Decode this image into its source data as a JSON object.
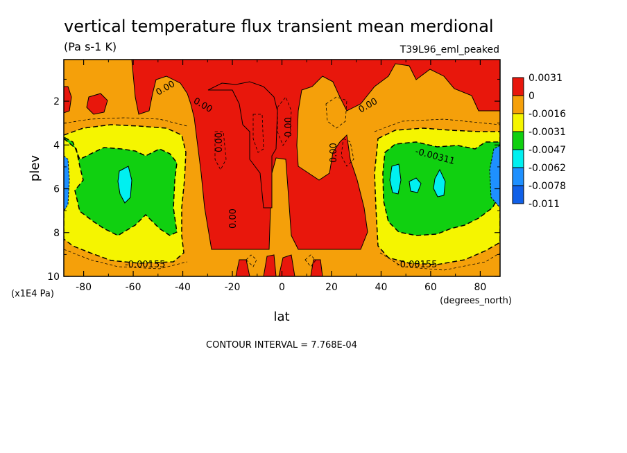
{
  "header": {
    "title": "vertical temperature flux transient mean merdional",
    "units": "(Pa s-1 K)",
    "run_label": "T39L96_eml_peaked"
  },
  "footer": {
    "contour_interval": "CONTOUR INTERVAL = 7.768E-04"
  },
  "chart_data": {
    "type": "heatmap",
    "title": "vertical temperature flux transient mean merdional",
    "subtitle": "(Pa s-1 K)",
    "xlabel": "lat",
    "x_units": "(degrees_north)",
    "ylabel": "plev",
    "y_units": "(x1E4 Pa)",
    "xlim": [
      -88,
      88
    ],
    "ylim": [
      0.1,
      10
    ],
    "y_inverted": true,
    "x_ticks": [
      "-80",
      "-60",
      "-40",
      "-20",
      "0",
      "20",
      "40",
      "60",
      "80"
    ],
    "x_tick_values": [
      -80,
      -60,
      -40,
      -20,
      0,
      20,
      40,
      60,
      80
    ],
    "y_ticks": [
      "2",
      "4",
      "6",
      "8",
      "10"
    ],
    "y_tick_values": [
      2,
      4,
      6,
      8,
      10
    ],
    "contour_interval": 0.0007768,
    "colorbar": {
      "labels": [
        "0.0031",
        "0",
        "-0.0016",
        "-0.0031",
        "-0.0047",
        "-0.0062",
        "-0.0078",
        "-0.011"
      ],
      "colors": [
        "#e8170c",
        "#f5a00a",
        "#f5f500",
        "#10d010",
        "#00f0f0",
        "#1e90ff",
        "#1060e8"
      ]
    },
    "contour_labels": [
      "0.00",
      "0.00",
      "0.00",
      "0.00",
      "0.00",
      "0.00",
      "0.00",
      "-0.00311",
      "-0.00155",
      "-0.00155"
    ],
    "fill_regions": [
      {
        "level": "positive",
        "color": "#e8170c",
        "lat_range": [
          -88,
          -82
        ],
        "plev_range": [
          1.5,
          2.8
        ]
      },
      {
        "level": "positive",
        "color": "#e8170c",
        "lat_range": [
          -50,
          40
        ],
        "plev_range": [
          0.1,
          8.5
        ]
      },
      {
        "level": "positive",
        "color": "#e8170c",
        "lat_range": [
          60,
          88
        ],
        "plev_range": [
          0.1,
          2.5
        ]
      },
      {
        "level": "-0.0031",
        "color": "#10d010",
        "lat_range": [
          -85,
          -40
        ],
        "plev_range": [
          4,
          7.8
        ]
      },
      {
        "level": "-0.0047",
        "color": "#00f0f0",
        "lat_range": [
          -66,
          -60
        ],
        "plev_range": [
          5,
          6.6
        ]
      },
      {
        "level": "-0.0031",
        "color": "#10d010",
        "lat_range": [
          43,
          85
        ],
        "plev_range": [
          3.8,
          8
        ]
      },
      {
        "level": "-0.0047",
        "color": "#00f0f0",
        "lat_range": [
          43,
          66
        ],
        "plev_range": [
          5,
          6.5
        ]
      },
      {
        "level": "-0.0062",
        "color": "#1e90ff",
        "lat_range": [
          -88,
          -86
        ],
        "plev_range": [
          4,
          7
        ]
      },
      {
        "level": "-0.0062",
        "color": "#1e90ff",
        "lat_range": [
          86,
          88
        ],
        "plev_range": [
          4,
          7
        ]
      }
    ]
  }
}
